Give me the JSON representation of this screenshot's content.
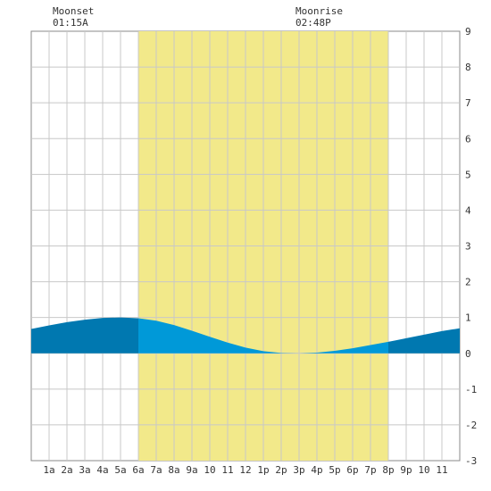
{
  "chart_data": {
    "type": "area",
    "title": "",
    "xlabel": "",
    "ylabel": "",
    "x_unit": "hour of day",
    "xlim": [
      0,
      24
    ],
    "ylim": [
      -3,
      9
    ],
    "y_ticks": [
      -3,
      -2,
      -1,
      0,
      1,
      2,
      3,
      4,
      5,
      6,
      7,
      8,
      9
    ],
    "x_tick_labels": [
      "1a",
      "2a",
      "3a",
      "4a",
      "5a",
      "6a",
      "7a",
      "8a",
      "9a",
      "10",
      "11",
      "12",
      "1p",
      "2p",
      "3p",
      "4p",
      "5p",
      "6p",
      "7p",
      "8p",
      "9p",
      "10",
      "11"
    ],
    "daylight": {
      "start": 6,
      "end": 20
    },
    "series": [
      {
        "x": [
          0,
          1,
          2,
          3,
          4,
          5,
          6,
          7,
          8,
          9,
          10,
          11,
          12,
          13,
          14,
          15,
          16,
          17,
          18,
          19,
          20,
          21,
          22,
          23,
          24
        ],
        "values": [
          0.68,
          0.78,
          0.87,
          0.94,
          0.99,
          1.0,
          0.98,
          0.91,
          0.79,
          0.63,
          0.46,
          0.3,
          0.16,
          0.06,
          0.01,
          0.0,
          0.02,
          0.07,
          0.14,
          0.23,
          0.32,
          0.42,
          0.52,
          0.62,
          0.7
        ]
      }
    ],
    "annotations": [
      {
        "label": "Moonset",
        "time": "01:15A",
        "hour": 1.25
      },
      {
        "label": "Moonrise",
        "time": "02:48P",
        "hour": 14.8
      }
    ],
    "grid": true
  },
  "colors": {
    "daylight": "#f2e98a",
    "tide_day": "#0099d8",
    "tide_night": "#0078b0",
    "grid": "#c8c8c8",
    "frame": "#888888"
  }
}
